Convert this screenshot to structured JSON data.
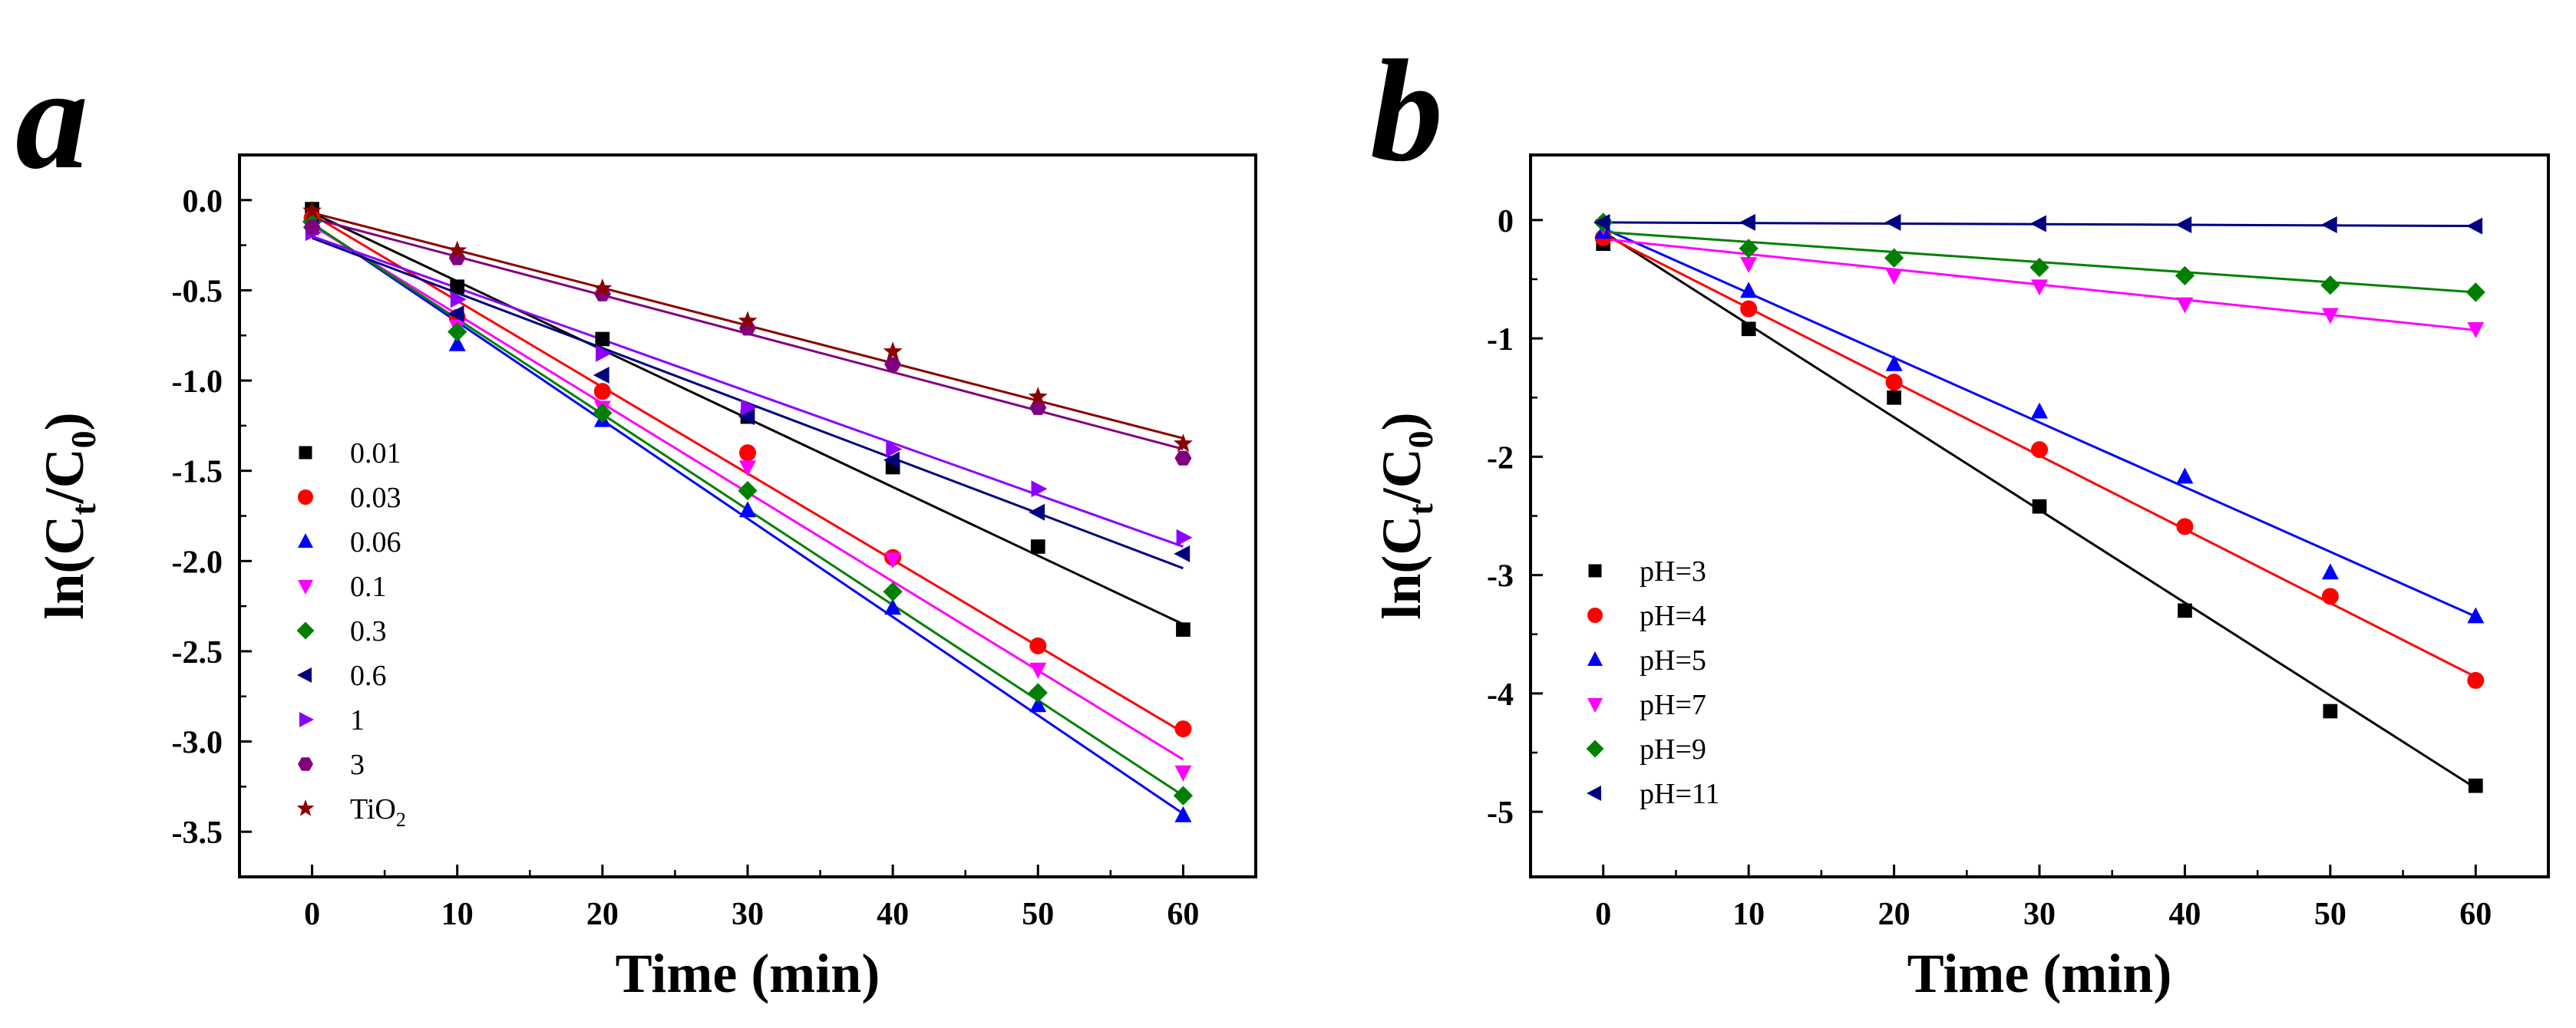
{
  "chart_data": [
    {
      "type": "scatter",
      "panel_label": "a",
      "xlabel": "Time (min)",
      "ylabel": {
        "base": "ln(C",
        "sub1": "t",
        "mid": "/C",
        "sub2": "0",
        "end": ")"
      },
      "xlim": [
        -5,
        65
      ],
      "ylim": [
        -3.75,
        0.25
      ],
      "xticks": [
        0,
        10,
        20,
        30,
        40,
        50,
        60
      ],
      "yticks": [
        0.0,
        -0.5,
        -1.0,
        -1.5,
        -2.0,
        -2.5,
        -3.0,
        -3.5
      ],
      "ytick_labels": [
        "0.0",
        "-0.5",
        "-1.0",
        "-1.5",
        "-2.0",
        "-2.5",
        "-3.0",
        "-3.5"
      ],
      "legend_position": "left",
      "x": [
        0,
        10,
        20,
        30,
        40,
        50,
        60
      ],
      "series": [
        {
          "name": "0.01",
          "color": "#000000",
          "marker": "square",
          "values": [
            -0.05,
            -0.48,
            -0.77,
            -1.2,
            -1.48,
            -1.92,
            -2.38
          ],
          "fit": [
            -0.07,
            -2.35
          ]
        },
        {
          "name": "0.03",
          "color": "#ff0000",
          "marker": "circle",
          "values": [
            -0.1,
            -0.65,
            -1.06,
            -1.4,
            -1.98,
            -2.47,
            -2.93
          ],
          "fit": [
            -0.08,
            -2.95
          ]
        },
        {
          "name": "0.06",
          "color": "#0000ff",
          "marker": "triangle-up",
          "values": [
            -0.12,
            -0.8,
            -1.22,
            -1.72,
            -2.26,
            -2.8,
            -3.41
          ],
          "fit": [
            -0.13,
            -3.4
          ]
        },
        {
          "name": "0.1",
          "color": "#ff00ff",
          "marker": "triangle-down",
          "values": [
            -0.15,
            -0.7,
            -1.15,
            -1.48,
            -1.99,
            -2.6,
            -3.17
          ],
          "fit": [
            -0.14,
            -3.1
          ]
        },
        {
          "name": "0.3",
          "color": "#008000",
          "marker": "diamond",
          "values": [
            -0.12,
            -0.73,
            -1.18,
            -1.61,
            -2.17,
            -2.73,
            -3.3
          ],
          "fit": [
            -0.13,
            -3.3
          ]
        },
        {
          "name": "0.6",
          "color": "#000080",
          "marker": "triangle-left",
          "values": [
            -0.15,
            -0.63,
            -0.97,
            -1.2,
            -1.44,
            -1.73,
            -1.96
          ],
          "fit": [
            -0.21,
            -2.04
          ]
        },
        {
          "name": "1",
          "color": "#8b00ff",
          "marker": "triangle-right",
          "values": [
            -0.18,
            -0.55,
            -0.85,
            -1.15,
            -1.38,
            -1.6,
            -1.87
          ],
          "fit": [
            -0.2,
            -1.92
          ]
        },
        {
          "name": "3",
          "color": "#800080",
          "marker": "hexagon",
          "values": [
            -0.15,
            -0.32,
            -0.52,
            -0.71,
            -0.91,
            -1.15,
            -1.43
          ],
          "fit": [
            -0.1,
            -1.38
          ]
        },
        {
          "name": "TiO",
          "name_sub": "2",
          "color": "#8b0000",
          "marker": "star",
          "values": [
            -0.06,
            -0.28,
            -0.49,
            -0.67,
            -0.84,
            -1.09,
            -1.35
          ],
          "fit": [
            -0.07,
            -1.32
          ]
        }
      ]
    },
    {
      "type": "scatter",
      "panel_label": "b",
      "xlabel": "Time (min)",
      "ylabel": {
        "base": "ln(C",
        "sub1": "t",
        "mid": "/C",
        "sub2": "0",
        "end": ")"
      },
      "xlim": [
        -5,
        65
      ],
      "ylim": [
        -5.55,
        0.55
      ],
      "xticks": [
        0,
        10,
        20,
        30,
        40,
        50,
        60
      ],
      "yticks": [
        0,
        -1,
        -2,
        -3,
        -4,
        -5
      ],
      "ytick_labels": [
        "0",
        "-1",
        "-2",
        "-3",
        "-4",
        "-5"
      ],
      "legend_position": "bottom-left",
      "x": [
        0,
        10,
        20,
        30,
        40,
        50,
        60
      ],
      "series": [
        {
          "name": "pH=3",
          "color": "#000000",
          "marker": "square",
          "values": [
            -0.2,
            -0.92,
            -1.5,
            -2.42,
            -3.3,
            -4.15,
            -4.78
          ],
          "fit": [
            -0.1,
            -4.8
          ]
        },
        {
          "name": "pH=4",
          "color": "#ff0000",
          "marker": "circle",
          "values": [
            -0.15,
            -0.75,
            -1.37,
            -1.94,
            -2.59,
            -3.18,
            -3.89
          ],
          "fit": [
            -0.12,
            -3.86
          ]
        },
        {
          "name": "pH=5",
          "color": "#0000ff",
          "marker": "triangle-up",
          "values": [
            -0.1,
            -0.6,
            -1.22,
            -1.62,
            -2.17,
            -2.98,
            -3.35
          ],
          "fit": [
            -0.07,
            -3.35
          ]
        },
        {
          "name": "pH=7",
          "color": "#ff00ff",
          "marker": "triangle-down",
          "values": [
            -0.05,
            -0.37,
            -0.47,
            -0.56,
            -0.71,
            -0.8,
            -0.92
          ],
          "fit": [
            -0.16,
            -0.93
          ]
        },
        {
          "name": "pH=9",
          "color": "#008000",
          "marker": "diamond",
          "values": [
            -0.02,
            -0.24,
            -0.32,
            -0.4,
            -0.47,
            -0.55,
            -0.61
          ],
          "fit": [
            -0.1,
            -0.61
          ]
        },
        {
          "name": "pH=11",
          "color": "#000080",
          "marker": "triangle-left",
          "values": [
            -0.02,
            -0.02,
            -0.02,
            -0.03,
            -0.04,
            -0.04,
            -0.05
          ],
          "fit": [
            -0.02,
            -0.05
          ]
        }
      ]
    }
  ]
}
